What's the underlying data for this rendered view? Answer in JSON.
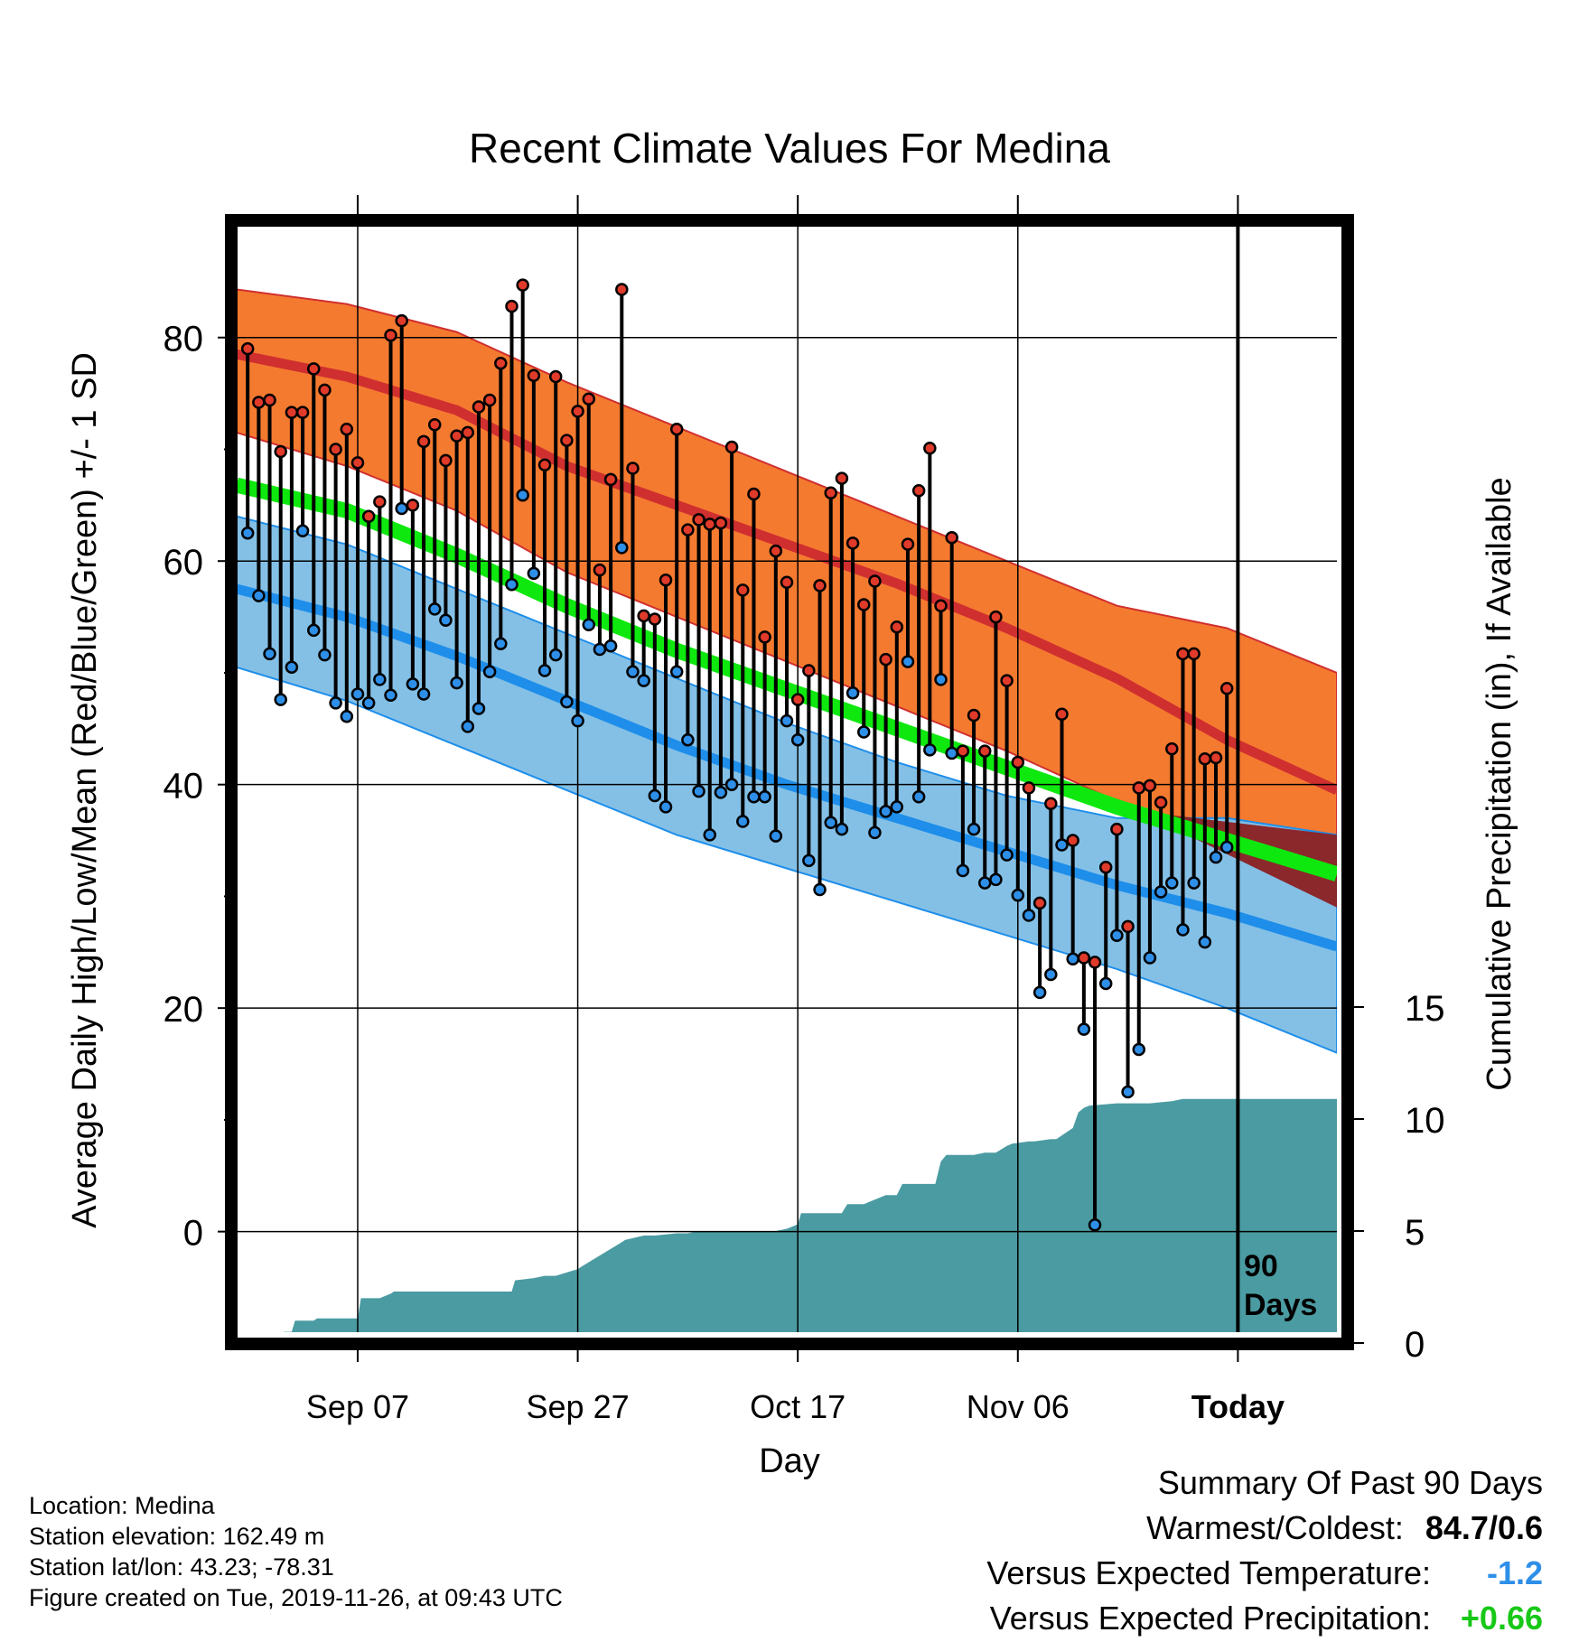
{
  "title": "Recent Climate Values For Medina",
  "xlabel": "Day",
  "ylabel_left": "Average Daily High/Low/Mean (Red/Blue/Green) +/- 1 SD",
  "ylabel_right": "Cumulative Precipitation (in), If Available",
  "days_label": [
    "90",
    "Days"
  ],
  "info": {
    "location": "Location: Medina",
    "elevation": "Station elevation: 162.49 m",
    "latlon": "Station lat/lon: 43.23; -78.31",
    "created": "Figure created on Tue, 2019-11-26, at 09:43 UTC"
  },
  "summary": {
    "heading": "Summary Of Past 90 Days",
    "warm_cold_label": "Warmest/Coldest:",
    "warm_cold_value": "84.7/0.6",
    "temp_label": "Versus Expected Temperature:",
    "temp_value": "-1.2",
    "precip_label": "Versus Expected Precipitation:",
    "precip_value": "+0.66"
  },
  "colors": {
    "high_band": "#f47a30",
    "high_line": "#d02f2f",
    "low_band": "#84c0e6",
    "low_line": "#1e8eea",
    "mean_line": "#0ee80e",
    "precip": "#4b9ba2",
    "cross": "#8b1717",
    "high_dot": "#e03a2a",
    "low_dot": "#2e8fe8",
    "temp_value": "#2e8fe8",
    "precip_value": "#18c818"
  },
  "chart_data": {
    "type": "line",
    "x_ticks": [
      {
        "day": 11,
        "label": "Sep 07"
      },
      {
        "day": 31,
        "label": "Sep 27"
      },
      {
        "day": 51,
        "label": "Oct 17"
      },
      {
        "day": 71,
        "label": "Nov 06"
      },
      {
        "day": 91,
        "label": "Today"
      }
    ],
    "x_range": [
      0,
      100
    ],
    "y_range": [
      -9,
      90
    ],
    "y_ticks": [
      0,
      20,
      40,
      60,
      80
    ],
    "y2_ticks": [
      0,
      5,
      10,
      15
    ],
    "y2_range": [
      0,
      50
    ],
    "normal_high": {
      "x": [
        0,
        10,
        20,
        30,
        40,
        50,
        60,
        70,
        80,
        90,
        100
      ],
      "mean": [
        78.5,
        76.5,
        73.5,
        68.5,
        65.0,
        61.5,
        58.0,
        54.0,
        49.5,
        44.0,
        39.5
      ],
      "upper": [
        84.3,
        83.0,
        80.5,
        76.0,
        72.0,
        68.0,
        64.0,
        60.0,
        56.0,
        54.0,
        50.0
      ],
      "lower": [
        71.5,
        68.5,
        64.5,
        59.0,
        55.0,
        51.0,
        47.0,
        43.0,
        38.5,
        34.0,
        29.0
      ]
    },
    "normal_low": {
      "x": [
        0,
        10,
        20,
        30,
        40,
        50,
        60,
        70,
        80,
        90,
        100
      ],
      "mean": [
        57.5,
        55.0,
        51.5,
        47.5,
        43.5,
        40.0,
        37.0,
        34.0,
        31.0,
        28.5,
        25.5
      ],
      "upper": [
        64.0,
        61.5,
        57.5,
        53.5,
        49.5,
        45.5,
        42.0,
        39.0,
        37.0,
        37.0,
        35.5
      ],
      "lower": [
        50.5,
        47.5,
        43.5,
        39.5,
        35.5,
        32.5,
        29.5,
        26.5,
        23.5,
        20.0,
        16.0
      ]
    },
    "normal_mean": {
      "x": [
        0,
        10,
        20,
        30,
        40,
        50,
        60,
        70,
        80,
        90,
        100
      ],
      "values": [
        66.8,
        64.5,
        60.5,
        56.0,
        52.0,
        48.5,
        45.0,
        41.5,
        38.0,
        35.0,
        32.0
      ]
    },
    "daily": {
      "x": [
        1,
        2,
        3,
        4,
        5,
        6,
        7,
        8,
        9,
        10,
        11,
        12,
        13,
        14,
        15,
        16,
        17,
        18,
        19,
        20,
        21,
        22,
        23,
        24,
        25,
        26,
        27,
        28,
        29,
        30,
        31,
        32,
        33,
        34,
        35,
        36,
        37,
        38,
        39,
        40,
        41,
        42,
        43,
        44,
        45,
        46,
        47,
        48,
        49,
        50,
        51,
        52,
        53,
        54,
        55,
        56,
        57,
        58,
        59,
        60,
        61,
        62,
        63,
        64,
        65,
        66,
        67,
        68,
        69,
        70,
        71,
        72,
        73,
        74,
        75,
        76,
        77,
        78,
        79,
        80,
        81,
        82,
        83,
        84,
        85,
        86,
        87,
        88,
        89,
        90
      ],
      "high": [
        79,
        74.2,
        74.4,
        69.8,
        73.3,
        73.3,
        77.2,
        75.3,
        70,
        71.8,
        68.8,
        64,
        65.3,
        80.2,
        81.5,
        65,
        70.7,
        72.2,
        69,
        71.2,
        71.5,
        73.8,
        74.4,
        77.7,
        82.8,
        84.7,
        76.6,
        68.6,
        76.5,
        70.8,
        73.4,
        74.5,
        59.2,
        67.3,
        84.3,
        68.3,
        55.1,
        54.8,
        58.3,
        71.8,
        62.8,
        63.7,
        63.3,
        63.4,
        70.2,
        57.4,
        66,
        53.2,
        60.9,
        58.1,
        47.6,
        50.2,
        57.8,
        66.1,
        67.4,
        61.6,
        56.1,
        58.2,
        51.2,
        54.1,
        61.5,
        66.3,
        70.1,
        56,
        62.1,
        43,
        46.2,
        43,
        55,
        49.3,
        42,
        39.7,
        29.4,
        38.3,
        46.3,
        35,
        24.5,
        24.1,
        32.6,
        36,
        27.3,
        39.7,
        39.9,
        38.4,
        43.2,
        51.7,
        51.7,
        42.3,
        42.4,
        48.6
      ],
      "low": [
        62.5,
        56.9,
        51.7,
        47.6,
        50.5,
        62.7,
        53.8,
        51.6,
        47.3,
        46.1,
        48.1,
        47.3,
        49.4,
        48,
        64.7,
        49,
        48.1,
        55.7,
        54.7,
        49.1,
        45.2,
        46.8,
        50.1,
        52.6,
        57.9,
        65.9,
        58.9,
        50.2,
        51.6,
        47.4,
        45.7,
        54.3,
        52.1,
        52.4,
        61.2,
        50.1,
        49.3,
        39,
        38,
        50.1,
        44,
        39.4,
        35.5,
        39.3,
        40,
        36.7,
        38.9,
        38.9,
        35.4,
        45.7,
        44,
        33.2,
        30.6,
        36.6,
        36,
        48.2,
        44.7,
        35.7,
        37.6,
        38,
        51,
        38.9,
        43.1,
        49.4,
        42.8,
        32.3,
        36,
        31.2,
        31.5,
        33.7,
        30.1,
        28.3,
        21.4,
        23,
        34.6,
        24.4,
        18.1,
        0.6,
        22.2,
        26.5,
        12.5,
        16.3,
        24.5,
        30.4,
        31.2,
        27,
        31.2,
        25.9,
        33.5,
        34.4
      ]
    },
    "precip_cum": {
      "x": [
        0,
        4,
        4.3,
        5,
        5.3,
        7,
        7.3,
        11,
        11.3,
        13,
        14,
        14.3,
        17,
        18,
        19,
        20,
        24,
        25,
        25.3,
        27,
        28,
        29,
        31,
        31.3,
        35,
        35.3,
        37,
        38,
        40,
        41,
        42,
        45,
        46,
        48,
        49,
        50,
        51,
        51.3,
        54,
        55,
        55.5,
        57,
        58,
        59,
        60,
        60.5,
        63,
        63.5,
        64,
        64.5,
        67,
        68,
        69,
        70,
        70.5,
        72,
        72.5,
        74,
        74.5,
        76,
        76.5,
        77,
        77.5,
        80,
        83,
        85,
        86,
        88,
        90,
        92,
        95,
        100
      ],
      "y": [
        0,
        0,
        0.5,
        0.5,
        1.0,
        1.0,
        1.1,
        1.1,
        2.0,
        2.0,
        2.2,
        2.3,
        2.3,
        2.3,
        2.3,
        2.3,
        2.3,
        2.3,
        2.8,
        2.9,
        3.0,
        3.0,
        3.3,
        3.4,
        4.5,
        4.6,
        4.8,
        4.8,
        4.9,
        4.9,
        5.0,
        5.0,
        5.0,
        5.0,
        5.0,
        5.1,
        5.3,
        5.8,
        5.8,
        5.8,
        6.2,
        6.2,
        6.4,
        6.6,
        6.6,
        7.1,
        7.1,
        7.1,
        8.1,
        8.4,
        8.4,
        8.5,
        8.5,
        8.8,
        8.9,
        9.0,
        9.0,
        9.1,
        9.1,
        9.6,
        10.3,
        10.5,
        10.6,
        10.7,
        10.7,
        10.8,
        10.9,
        10.9,
        10.9,
        10.9,
        10.9,
        10.9
      ]
    }
  }
}
